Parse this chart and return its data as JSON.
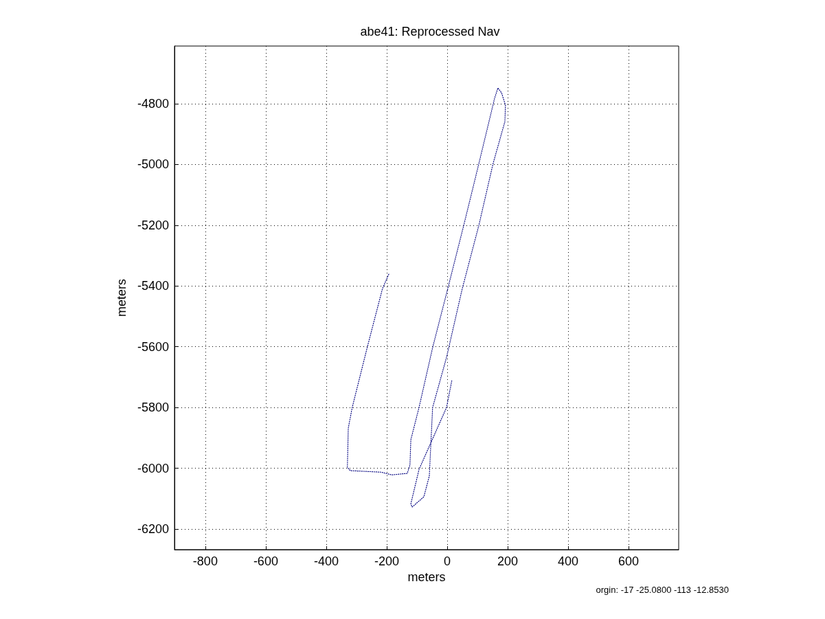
{
  "chart_data": {
    "type": "line",
    "title": "abe41: Reprocessed Nav",
    "xlabel": "meters",
    "ylabel": "meters",
    "annotations": [
      "orgin: -17 -25.0800 -113 -12.8530"
    ],
    "x": [
      -193,
      -214,
      -264,
      -314,
      -327,
      -330,
      -320,
      -218,
      -184,
      -132,
      -123,
      -120,
      -93,
      -48,
      2,
      55,
      105,
      157,
      168,
      180,
      193,
      191,
      152,
      105,
      50,
      -2,
      -48,
      -59,
      -77,
      -116,
      -120,
      -93,
      -2,
      16
    ],
    "series": [
      {
        "color": "#00007f",
        "values": [
          -5361,
          -5409,
          -5601,
          -5800,
          -5868,
          -5997,
          -6008,
          -6013,
          -6022,
          -6017,
          -5990,
          -5906,
          -5800,
          -5603,
          -5409,
          -5200,
          -4997,
          -4782,
          -4748,
          -4764,
          -4805,
          -4859,
          -4997,
          -5200,
          -5409,
          -5635,
          -5800,
          -6026,
          -6094,
          -6128,
          -6117,
          -6004,
          -5800,
          -5709
        ]
      }
    ],
    "xlim": [
      -902,
      766
    ],
    "xticks": [
      -800,
      -600,
      -400,
      -200,
      0,
      200,
      400,
      600
    ],
    "ylim": [
      -6268,
      -4610
    ],
    "yticks": [
      -6200,
      -6000,
      -5800,
      -5600,
      -5400,
      -5200,
      -5000,
      -4800
    ],
    "grid": true,
    "marker": "none",
    "line_style": "dotted"
  }
}
